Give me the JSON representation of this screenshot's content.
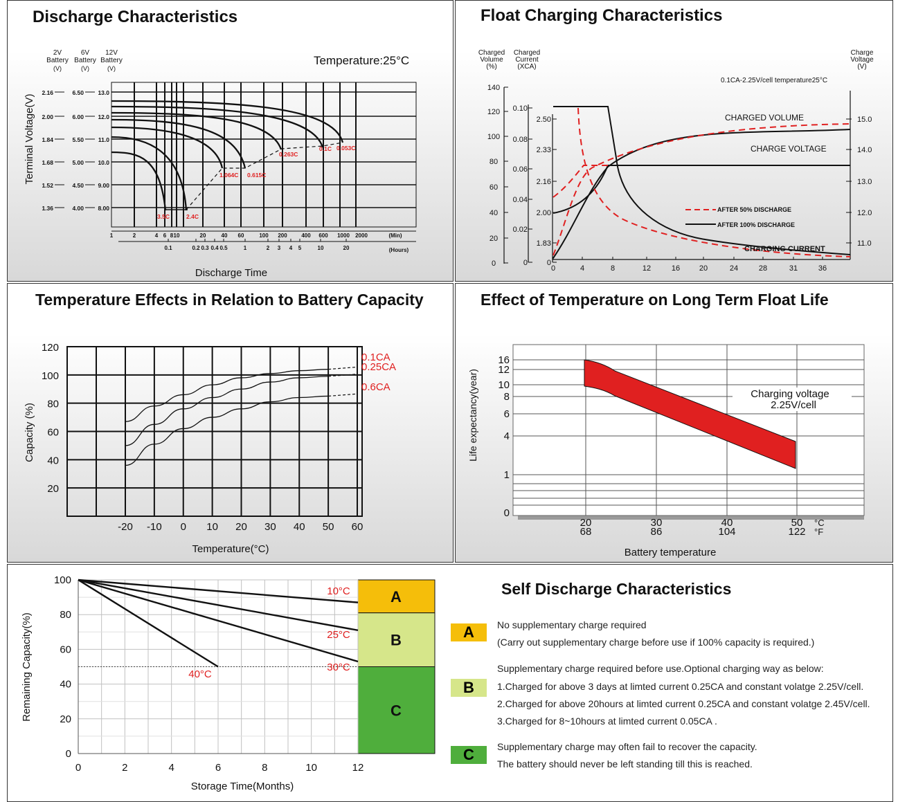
{
  "colors": {
    "red": "#e02020",
    "dark": "#111111",
    "zoneA": "#f5be0a",
    "zoneB": "#d6e68a",
    "zoneC": "#4fae3c"
  },
  "chart_data": [
    {
      "id": "discharge",
      "type": "line",
      "title": "Discharge Characteristics",
      "ylabel": "Terminal Voltage(V)",
      "xlabel": "Discharge Time",
      "temperature": "Temperature:25°C",
      "y_headers": {
        "v2": "2V",
        "v6": "6V",
        "v12": "12V",
        "battery": "Battery",
        "unit": "(V)"
      },
      "y_ticks": [
        {
          "v2": "2.16",
          "v6": "6.50",
          "v12": "13.0"
        },
        {
          "v2": "2.00",
          "v6": "6.00",
          "v12": "12.0"
        },
        {
          "v2": "1.84",
          "v6": "5.50",
          "v12": "11.0"
        },
        {
          "v2": "1.68",
          "v6": "5.00",
          "v12": "10.0"
        },
        {
          "v2": "1.52",
          "v6": "4.50",
          "v12": "9.00"
        },
        {
          "v2": "1.36",
          "v6": "4.00",
          "v12": "8.00"
        }
      ],
      "min_ticks": [
        "1",
        "2",
        "4",
        "6",
        "8",
        "10",
        "20",
        "40",
        "60",
        "100",
        "200",
        "400",
        "600",
        "1000",
        "2000"
      ],
      "min_unit": "(Min)",
      "hour_ticks": [
        "0.1",
        "0.2",
        "0.3",
        "0.4",
        "0.5",
        "1",
        "2",
        "3",
        "4",
        "5",
        "10",
        "20"
      ],
      "hour_unit": "(Hours)",
      "series": [
        {
          "name": "3.5C"
        },
        {
          "name": "2.4C"
        },
        {
          "name": "1.064C"
        },
        {
          "name": "0.615C"
        },
        {
          "name": "0.263C"
        },
        {
          "name": "0.1C"
        },
        {
          "name": "0.053C"
        }
      ]
    },
    {
      "id": "float",
      "type": "line",
      "title": "Float Charging Characteristics",
      "left1_label": [
        "Charged",
        "Volume",
        "(%)"
      ],
      "left2_label": [
        "Charged",
        "Current",
        "(XCA)"
      ],
      "right_label": [
        "Charge",
        "Voltage",
        "(V)"
      ],
      "note": "0.1CA-2.25V/cell   temperature25°C",
      "left1_ticks": [
        "140",
        "120",
        "100",
        "80",
        "60",
        "40",
        "20",
        "0"
      ],
      "left2_ticks": [
        "0.10",
        "0.08",
        "0.06",
        "0.04",
        "0.02",
        "0"
      ],
      "left3_ticks": [
        "2.50",
        "2.33",
        "2.16",
        "2.00",
        "1.83",
        "0"
      ],
      "right_ticks": [
        "15.0",
        "14.0",
        "13.0",
        "12.0",
        "11.0"
      ],
      "x_ticks": [
        "0",
        "4",
        "8",
        "12",
        "16",
        "20",
        "24",
        "28",
        "31",
        "36"
      ],
      "labels": {
        "volume": "CHARGED VOLUME",
        "voltage": "CHARGE VOLTAGE",
        "current": "CHARGING CURRENT",
        "after50": "AFTER 50% DISCHARGE",
        "after100": "AFTER 100% DISCHARGE"
      }
    },
    {
      "id": "temp_capacity",
      "type": "line",
      "title": "Temperature Effects in Relation to Battery Capacity",
      "xlabel": "Temperature(°C)",
      "ylabel": "Capacity (%)",
      "x": [
        -20,
        -10,
        0,
        10,
        20,
        30,
        40,
        50
      ],
      "ylim": [
        0,
        120
      ],
      "y_ticks": [
        "120",
        "100",
        "80",
        "60",
        "40",
        "20"
      ],
      "x_ticks": [
        "-20",
        "-10",
        "0",
        "10",
        "20",
        "30",
        "40",
        "50",
        "60"
      ],
      "series": [
        {
          "name": "0.1CA",
          "values": [
            67,
            78,
            86,
            93,
            98,
            101,
            103,
            104
          ]
        },
        {
          "name": "0.25CA",
          "values": [
            50,
            65,
            76,
            84,
            90,
            95,
            98,
            99
          ]
        },
        {
          "name": "0.6CA",
          "values": [
            36,
            51,
            62,
            70,
            76,
            81,
            84,
            85
          ]
        }
      ]
    },
    {
      "id": "float_life",
      "type": "area",
      "title": "Effect of Temperature on Long Term Float Life",
      "ylabel": "Life expectancy(year)",
      "xlabel": "Battery temperature",
      "annotation": [
        "Charging voltage",
        "2.25V/cell"
      ],
      "y_ticks": [
        "16",
        "12",
        "10",
        "8",
        "6",
        "4",
        "1",
        "0"
      ],
      "x_ticks_c": [
        "20",
        "30",
        "40",
        "50"
      ],
      "x_ticks_f": [
        "68",
        "86",
        "104",
        "122"
      ],
      "unit_c": "°C",
      "unit_f": "°F",
      "band_upper": [
        {
          "t": 20,
          "y": 15
        },
        {
          "t": 25,
          "y": 13.5
        },
        {
          "t": 50,
          "y": 4.2
        }
      ],
      "band_lower": [
        {
          "t": 20,
          "y": 9
        },
        {
          "t": 24,
          "y": 8.6
        },
        {
          "t": 50,
          "y": 2.4
        }
      ]
    },
    {
      "id": "self_discharge",
      "type": "line",
      "title": "Self Discharge Characteristics",
      "xlabel": "Storage Time(Months)",
      "ylabel": "Remaining Capacity(%)",
      "y_ticks": [
        "100",
        "80",
        "60",
        "40",
        "20",
        "0"
      ],
      "x_ticks": [
        "0",
        "2",
        "4",
        "6",
        "8",
        "10",
        "12"
      ],
      "series": [
        {
          "name": "10°C",
          "x": [
            0,
            12
          ],
          "y": [
            100,
            87
          ]
        },
        {
          "name": "25°C",
          "x": [
            0,
            12
          ],
          "y": [
            100,
            71
          ]
        },
        {
          "name": "30°C",
          "x": [
            0,
            12
          ],
          "y": [
            100,
            53
          ]
        },
        {
          "name": "40°C",
          "x": [
            0,
            6
          ],
          "y": [
            100,
            50
          ]
        }
      ],
      "zones": [
        {
          "id": "A",
          "from": 100,
          "to": 81
        },
        {
          "id": "B",
          "from": 81,
          "to": 50
        },
        {
          "id": "C",
          "from": 50,
          "to": 0
        }
      ],
      "legend": [
        {
          "id": "A",
          "lines": [
            "No supplementary charge required",
            "(Carry out supplementary charge before use if 100% capacity is required.)"
          ]
        },
        {
          "id": "B",
          "lines": [
            "Supplementary charge required before use.Optional charging way as below:",
            "1.Charged for above 3 days at limted current 0.25CA and constant volatge 2.25V/cell.",
            "2.Charged for above 20hours at limted current 0.25CA and constant volatge 2.45V/cell.",
            "3.Charged for 8~10hours at limted current 0.05CA ."
          ]
        },
        {
          "id": "C",
          "lines": [
            "Supplementary charge may often fail to recover the capacity.",
            "The battery should never be  left standing till this is reached."
          ]
        }
      ]
    }
  ]
}
